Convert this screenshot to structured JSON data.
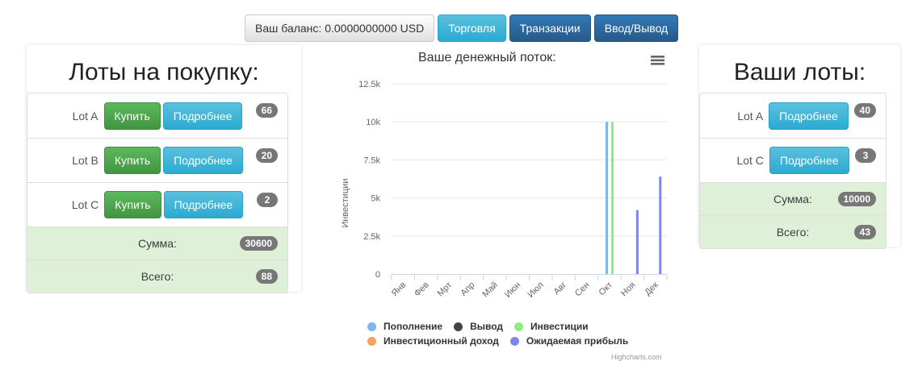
{
  "toolbar": {
    "balance_label": "Ваш баланс: 0.0000000000 USD",
    "trade_label": "Торговля",
    "transactions_label": "Транзакции",
    "io_label": "Ввод/Вывод"
  },
  "buy_panel": {
    "title": "Лоты на покупку:",
    "items": [
      {
        "name": "Lot A",
        "buy": "Купить",
        "details": "Подробнее",
        "count": "66"
      },
      {
        "name": "Lot B",
        "buy": "Купить",
        "details": "Подробнее",
        "count": "20"
      },
      {
        "name": "Lot C",
        "buy": "Купить",
        "details": "Подробнее",
        "count": "2"
      }
    ],
    "sum_label": "Сумма:",
    "sum_value": "30600",
    "total_label": "Всего:",
    "total_value": "88"
  },
  "my_panel": {
    "title": "Ваши лоты:",
    "items": [
      {
        "name": "Lot A",
        "details": "Подробнее",
        "count": "40"
      },
      {
        "name": "Lot C",
        "details": "Подробнее",
        "count": "3"
      }
    ],
    "sum_label": "Сумма:",
    "sum_value": "10000",
    "total_label": "Всего:",
    "total_value": "43"
  },
  "chart_data": {
    "type": "bar",
    "title": "Ваше денежный поток:",
    "ylabel": "Инвестиции",
    "xlabel": "",
    "ylim": [
      0,
      12500
    ],
    "yticks": [
      0,
      2500,
      5000,
      7500,
      10000,
      12500
    ],
    "ytick_labels": [
      "0",
      "2.5k",
      "5k",
      "7.5k",
      "10k",
      "12.5k"
    ],
    "categories": [
      "Янв",
      "Фев",
      "Мрт",
      "Апр",
      "Май",
      "Июн",
      "Июл",
      "Авг",
      "Сен",
      "Окт",
      "Ноя",
      "Дек"
    ],
    "series": [
      {
        "name": "Пополнение",
        "color": "#7cb5ec",
        "values": [
          0,
          0,
          0,
          0,
          0,
          0,
          0,
          0,
          0,
          10000,
          0,
          0
        ]
      },
      {
        "name": "Вывод",
        "color": "#434348",
        "values": [
          0,
          0,
          0,
          0,
          0,
          0,
          0,
          0,
          0,
          0,
          0,
          0
        ]
      },
      {
        "name": "Инвестиции",
        "color": "#90ed7d",
        "values": [
          0,
          0,
          0,
          0,
          0,
          0,
          0,
          0,
          0,
          10000,
          0,
          0
        ]
      },
      {
        "name": "Инвестиционный доход",
        "color": "#f7a35c",
        "values": [
          0,
          0,
          0,
          0,
          0,
          0,
          0,
          0,
          0,
          0,
          0,
          0
        ]
      },
      {
        "name": "Ожидаемая прибыль",
        "color": "#8085e9",
        "values": [
          0,
          0,
          0,
          0,
          0,
          0,
          0,
          0,
          0,
          0,
          4200,
          6400
        ]
      }
    ],
    "grid": true,
    "legend": "bottom",
    "credits": "Highcharts.com",
    "menu_icon": "hamburger-menu-icon"
  }
}
